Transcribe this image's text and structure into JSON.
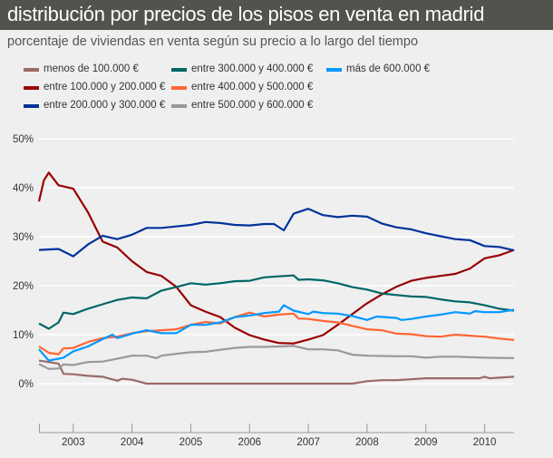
{
  "header": {
    "title": "distribución por precios de los pisos en venta en madrid",
    "subtitle": "porcentaje de viviendas en venta según su precio a lo largo del tiempo"
  },
  "chart_data": {
    "type": "line",
    "title": "distribución por precios de los pisos en venta en madrid",
    "subtitle": "porcentaje de viviendas en venta según su precio a lo largo del tiempo",
    "xlabel": "",
    "ylabel": "",
    "xlim": [
      "2002-06",
      "2010-07"
    ],
    "ylim": [
      -10,
      50
    ],
    "y_ticks": [
      "50%",
      "40%",
      "30%",
      "20%",
      "10%",
      "0%"
    ],
    "y_tick_values": [
      50,
      40,
      30,
      20,
      10,
      0
    ],
    "x_ticks": [
      "2003",
      "2004",
      "2005",
      "2006",
      "2007",
      "2008",
      "2009",
      "2010"
    ],
    "grid": "horizontal",
    "legend_placement": "top",
    "series": [
      {
        "name": "menos de 100.000 €",
        "color": "#9a6a68",
        "points": [
          [
            "2002-06",
            4.7
          ],
          [
            "2002-10",
            4.1
          ],
          [
            "2002-11",
            2.0
          ],
          [
            "2003-01",
            1.9
          ],
          [
            "2003-04",
            1.6
          ],
          [
            "2003-07",
            1.4
          ],
          [
            "2003-10",
            0.6
          ],
          [
            "2003-11",
            1.0
          ],
          [
            "2004-01",
            0.8
          ],
          [
            "2004-04",
            0.0
          ],
          [
            "2005-01",
            0.0
          ],
          [
            "2006-01",
            0.0
          ],
          [
            "2007-01",
            0.0
          ],
          [
            "2007-10",
            0.0
          ],
          [
            "2008-01",
            0.5
          ],
          [
            "2008-04",
            0.7
          ],
          [
            "2008-07",
            0.7
          ],
          [
            "2009-01",
            1.1
          ],
          [
            "2009-07",
            1.1
          ],
          [
            "2009-12",
            1.1
          ],
          [
            "2010-01",
            1.4
          ],
          [
            "2010-02",
            1.1
          ],
          [
            "2010-07",
            1.4
          ]
        ]
      },
      {
        "name": "entre 100.000 y 200.000 €",
        "color": "#990000",
        "points": [
          [
            "2002-06",
            37.2
          ],
          [
            "2002-07",
            41.5
          ],
          [
            "2002-08",
            43.1
          ],
          [
            "2002-10",
            40.5
          ],
          [
            "2003-01",
            39.8
          ],
          [
            "2003-04",
            35.0
          ],
          [
            "2003-07",
            29.0
          ],
          [
            "2003-10",
            27.8
          ],
          [
            "2004-01",
            25.0
          ],
          [
            "2004-04",
            22.8
          ],
          [
            "2004-07",
            22.0
          ],
          [
            "2004-10",
            19.8
          ],
          [
            "2005-01",
            16.0
          ],
          [
            "2005-04",
            14.7
          ],
          [
            "2005-07",
            13.6
          ],
          [
            "2005-10",
            11.4
          ],
          [
            "2006-01",
            9.9
          ],
          [
            "2006-04",
            9.0
          ],
          [
            "2006-07",
            8.3
          ],
          [
            "2006-10",
            8.2
          ],
          [
            "2007-01",
            9.0
          ],
          [
            "2007-04",
            9.9
          ],
          [
            "2007-07",
            12.0
          ],
          [
            "2007-10",
            14.2
          ],
          [
            "2008-01",
            16.4
          ],
          [
            "2008-04",
            18.2
          ],
          [
            "2008-07",
            19.8
          ],
          [
            "2008-10",
            21.0
          ],
          [
            "2009-01",
            21.6
          ],
          [
            "2009-04",
            22.0
          ],
          [
            "2009-07",
            22.4
          ],
          [
            "2009-10",
            23.5
          ],
          [
            "2010-01",
            25.6
          ],
          [
            "2010-04",
            26.2
          ],
          [
            "2010-07",
            27.3
          ]
        ]
      },
      {
        "name": "entre 200.000 y 300.000 €",
        "color": "#003399",
        "points": [
          [
            "2002-06",
            27.3
          ],
          [
            "2002-10",
            27.5
          ],
          [
            "2003-01",
            26.0
          ],
          [
            "2003-04",
            28.4
          ],
          [
            "2003-07",
            30.2
          ],
          [
            "2003-10",
            29.5
          ],
          [
            "2004-01",
            30.4
          ],
          [
            "2004-04",
            31.8
          ],
          [
            "2004-07",
            31.8
          ],
          [
            "2004-10",
            32.1
          ],
          [
            "2005-01",
            32.4
          ],
          [
            "2005-04",
            33.0
          ],
          [
            "2005-07",
            32.8
          ],
          [
            "2005-10",
            32.4
          ],
          [
            "2006-01",
            32.3
          ],
          [
            "2006-04",
            32.6
          ],
          [
            "2006-06",
            32.6
          ],
          [
            "2006-08",
            31.3
          ],
          [
            "2006-10",
            34.7
          ],
          [
            "2007-01",
            35.7
          ],
          [
            "2007-04",
            34.4
          ],
          [
            "2007-07",
            34.0
          ],
          [
            "2007-10",
            34.3
          ],
          [
            "2008-01",
            34.1
          ],
          [
            "2008-04",
            32.7
          ],
          [
            "2008-07",
            31.9
          ],
          [
            "2008-10",
            31.5
          ],
          [
            "2009-01",
            30.7
          ],
          [
            "2009-04",
            30.1
          ],
          [
            "2009-07",
            29.5
          ],
          [
            "2009-10",
            29.3
          ],
          [
            "2010-01",
            28.1
          ],
          [
            "2010-04",
            27.9
          ],
          [
            "2010-07",
            27.2
          ]
        ]
      },
      {
        "name": "entre 300.000 y 400.000 €",
        "color": "#006666",
        "points": [
          [
            "2002-06",
            12.3
          ],
          [
            "2002-08",
            11.2
          ],
          [
            "2002-10",
            12.5
          ],
          [
            "2002-11",
            14.5
          ],
          [
            "2003-01",
            14.2
          ],
          [
            "2003-04",
            15.3
          ],
          [
            "2003-07",
            16.2
          ],
          [
            "2003-10",
            17.1
          ],
          [
            "2004-01",
            17.6
          ],
          [
            "2004-04",
            17.4
          ],
          [
            "2004-07",
            19.0
          ],
          [
            "2004-10",
            19.7
          ],
          [
            "2005-01",
            20.5
          ],
          [
            "2005-04",
            20.2
          ],
          [
            "2005-07",
            20.5
          ],
          [
            "2005-10",
            20.9
          ],
          [
            "2006-01",
            21.0
          ],
          [
            "2006-04",
            21.7
          ],
          [
            "2006-07",
            21.9
          ],
          [
            "2006-10",
            22.1
          ],
          [
            "2006-11",
            21.2
          ],
          [
            "2007-01",
            21.3
          ],
          [
            "2007-04",
            21.1
          ],
          [
            "2007-07",
            20.5
          ],
          [
            "2007-10",
            19.7
          ],
          [
            "2008-01",
            19.2
          ],
          [
            "2008-04",
            18.4
          ],
          [
            "2008-07",
            18.1
          ],
          [
            "2008-10",
            17.8
          ],
          [
            "2009-01",
            17.7
          ],
          [
            "2009-04",
            17.2
          ],
          [
            "2009-07",
            16.8
          ],
          [
            "2009-10",
            16.6
          ],
          [
            "2010-01",
            16.0
          ],
          [
            "2010-04",
            15.3
          ],
          [
            "2010-07",
            14.9
          ]
        ]
      },
      {
        "name": "entre 400.000 y 500.000 €",
        "color": "#ff6633",
        "points": [
          [
            "2002-06",
            7.6
          ],
          [
            "2002-08",
            6.3
          ],
          [
            "2002-10",
            6.0
          ],
          [
            "2002-11",
            7.2
          ],
          [
            "2003-01",
            7.3
          ],
          [
            "2003-04",
            8.5
          ],
          [
            "2003-07",
            9.3
          ],
          [
            "2003-10",
            9.6
          ],
          [
            "2004-01",
            10.3
          ],
          [
            "2004-04",
            10.7
          ],
          [
            "2004-07",
            10.9
          ],
          [
            "2004-10",
            11.1
          ],
          [
            "2005-01",
            12.0
          ],
          [
            "2005-04",
            12.6
          ],
          [
            "2005-07",
            12.3
          ],
          [
            "2005-10",
            13.6
          ],
          [
            "2006-01",
            14.5
          ],
          [
            "2006-04",
            13.7
          ],
          [
            "2006-07",
            14.1
          ],
          [
            "2006-10",
            14.3
          ],
          [
            "2006-11",
            13.3
          ],
          [
            "2007-01",
            13.2
          ],
          [
            "2007-04",
            12.8
          ],
          [
            "2007-07",
            12.5
          ],
          [
            "2007-10",
            11.8
          ],
          [
            "2008-01",
            11.1
          ],
          [
            "2008-04",
            10.9
          ],
          [
            "2008-07",
            10.2
          ],
          [
            "2008-10",
            10.1
          ],
          [
            "2009-01",
            9.7
          ],
          [
            "2009-04",
            9.6
          ],
          [
            "2009-07",
            10.0
          ],
          [
            "2009-10",
            9.8
          ],
          [
            "2010-01",
            9.6
          ],
          [
            "2010-04",
            9.2
          ],
          [
            "2010-07",
            8.9
          ]
        ]
      },
      {
        "name": "entre 500.000 y 600.000 €",
        "color": "#999999",
        "points": [
          [
            "2002-06",
            4.0
          ],
          [
            "2002-08",
            3.0
          ],
          [
            "2002-10",
            3.1
          ],
          [
            "2002-11",
            3.9
          ],
          [
            "2003-01",
            3.8
          ],
          [
            "2003-04",
            4.4
          ],
          [
            "2003-07",
            4.5
          ],
          [
            "2003-10",
            5.1
          ],
          [
            "2004-01",
            5.7
          ],
          [
            "2004-04",
            5.7
          ],
          [
            "2004-06",
            5.2
          ],
          [
            "2004-07",
            5.7
          ],
          [
            "2004-10",
            6.1
          ],
          [
            "2005-01",
            6.4
          ],
          [
            "2005-04",
            6.5
          ],
          [
            "2005-07",
            6.9
          ],
          [
            "2005-10",
            7.3
          ],
          [
            "2006-01",
            7.5
          ],
          [
            "2006-04",
            7.5
          ],
          [
            "2006-07",
            7.6
          ],
          [
            "2006-10",
            7.7
          ],
          [
            "2007-01",
            7.0
          ],
          [
            "2007-04",
            7.0
          ],
          [
            "2007-07",
            6.8
          ],
          [
            "2007-10",
            5.9
          ],
          [
            "2008-01",
            5.7
          ],
          [
            "2008-07",
            5.6
          ],
          [
            "2008-10",
            5.6
          ],
          [
            "2009-01",
            5.3
          ],
          [
            "2009-04",
            5.5
          ],
          [
            "2009-07",
            5.5
          ],
          [
            "2010-01",
            5.3
          ],
          [
            "2010-07",
            5.2
          ]
        ]
      },
      {
        "name": "más de 600.000 €",
        "color": "#0099ff",
        "points": [
          [
            "2002-06",
            7.0
          ],
          [
            "2002-08",
            4.7
          ],
          [
            "2002-10",
            5.1
          ],
          [
            "2002-11",
            5.3
          ],
          [
            "2003-01",
            6.6
          ],
          [
            "2003-04",
            7.6
          ],
          [
            "2003-07",
            9.1
          ],
          [
            "2003-09",
            10.0
          ],
          [
            "2003-10",
            9.3
          ],
          [
            "2004-01",
            10.2
          ],
          [
            "2004-04",
            10.9
          ],
          [
            "2004-07",
            10.3
          ],
          [
            "2004-10",
            10.3
          ],
          [
            "2005-01",
            12.0
          ],
          [
            "2005-04",
            12.0
          ],
          [
            "2005-07",
            12.5
          ],
          [
            "2005-10",
            13.6
          ],
          [
            "2006-01",
            13.9
          ],
          [
            "2006-04",
            14.4
          ],
          [
            "2006-07",
            14.7
          ],
          [
            "2006-08",
            16.0
          ],
          [
            "2006-10",
            14.9
          ],
          [
            "2007-01",
            14.2
          ],
          [
            "2007-02",
            14.7
          ],
          [
            "2007-04",
            14.4
          ],
          [
            "2007-07",
            14.3
          ],
          [
            "2007-10",
            13.8
          ],
          [
            "2008-01",
            13.0
          ],
          [
            "2008-03",
            13.7
          ],
          [
            "2008-07",
            13.4
          ],
          [
            "2008-08",
            13.0
          ],
          [
            "2008-10",
            13.2
          ],
          [
            "2009-01",
            13.7
          ],
          [
            "2009-04",
            14.1
          ],
          [
            "2009-07",
            14.6
          ],
          [
            "2009-10",
            14.3
          ],
          [
            "2009-11",
            14.8
          ],
          [
            "2010-01",
            14.6
          ],
          [
            "2010-04",
            14.6
          ],
          [
            "2010-07",
            15.1
          ]
        ]
      }
    ]
  }
}
